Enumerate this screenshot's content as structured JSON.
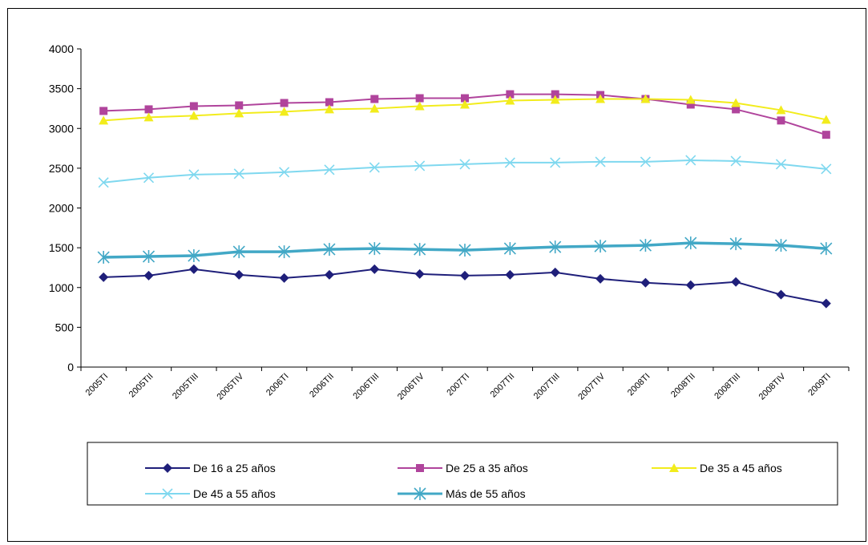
{
  "chart_data": {
    "type": "line",
    "title": "",
    "xlabel": "",
    "ylabel": "",
    "ylim": [
      0,
      4000
    ],
    "yticks": [
      0,
      500,
      1000,
      1500,
      2000,
      2500,
      3000,
      3500,
      4000
    ],
    "grid": false,
    "legend_placement": "bottom",
    "categories": [
      "2005TI",
      "2005TII",
      "2005TIII",
      "2005TIV",
      "2006TI",
      "2006TII",
      "2006TIII",
      "2006TIV",
      "2007TI",
      "2007TII",
      "2007TIII",
      "2007TIV",
      "2008TI",
      "2008TII",
      "2008TIII",
      "2008TIV",
      "2009TI"
    ],
    "tick_labels": [
      "2005TI",
      "2005TII",
      "2005TIII",
      "2005TIV",
      "2006TI",
      "2006TII",
      "2006TIII",
      "2006TIV",
      "2007TI",
      "2007TII",
      "2007TIII",
      "2007TIV",
      "2008TI",
      "2008TII",
      "2008TIII",
      "2008TIV",
      "2009TI"
    ],
    "series": [
      {
        "name": "De 16 a 25 años",
        "color": "#1f1f7a",
        "marker": "diamond",
        "values": [
          1130,
          1150,
          1230,
          1160,
          1120,
          1160,
          1230,
          1170,
          1150,
          1160,
          1190,
          1110,
          1060,
          1030,
          1070,
          910,
          800
        ]
      },
      {
        "name": "De 25 a 35 años",
        "color": "#b0449c",
        "marker": "square",
        "values": [
          3220,
          3240,
          3280,
          3290,
          3320,
          3330,
          3370,
          3380,
          3380,
          3430,
          3430,
          3420,
          3370,
          3300,
          3240,
          3100,
          2920
        ]
      },
      {
        "name": "De 35 a 45 años",
        "color": "#f2ec1c",
        "marker": "triangle",
        "values": [
          3100,
          3140,
          3160,
          3190,
          3210,
          3240,
          3250,
          3280,
          3300,
          3350,
          3360,
          3370,
          3370,
          3360,
          3320,
          3230,
          3110
        ]
      },
      {
        "name": "De 45 a 55 años",
        "color": "#7fd8ef",
        "marker": "x",
        "values": [
          2320,
          2380,
          2420,
          2430,
          2450,
          2480,
          2510,
          2530,
          2550,
          2570,
          2570,
          2580,
          2580,
          2600,
          2590,
          2550,
          2490
        ]
      },
      {
        "name": "Más de 55 años",
        "color": "#42a8c6",
        "marker": "star",
        "values": [
          1380,
          1390,
          1400,
          1450,
          1450,
          1480,
          1490,
          1480,
          1470,
          1490,
          1510,
          1520,
          1530,
          1560,
          1550,
          1530,
          1490
        ]
      }
    ]
  }
}
